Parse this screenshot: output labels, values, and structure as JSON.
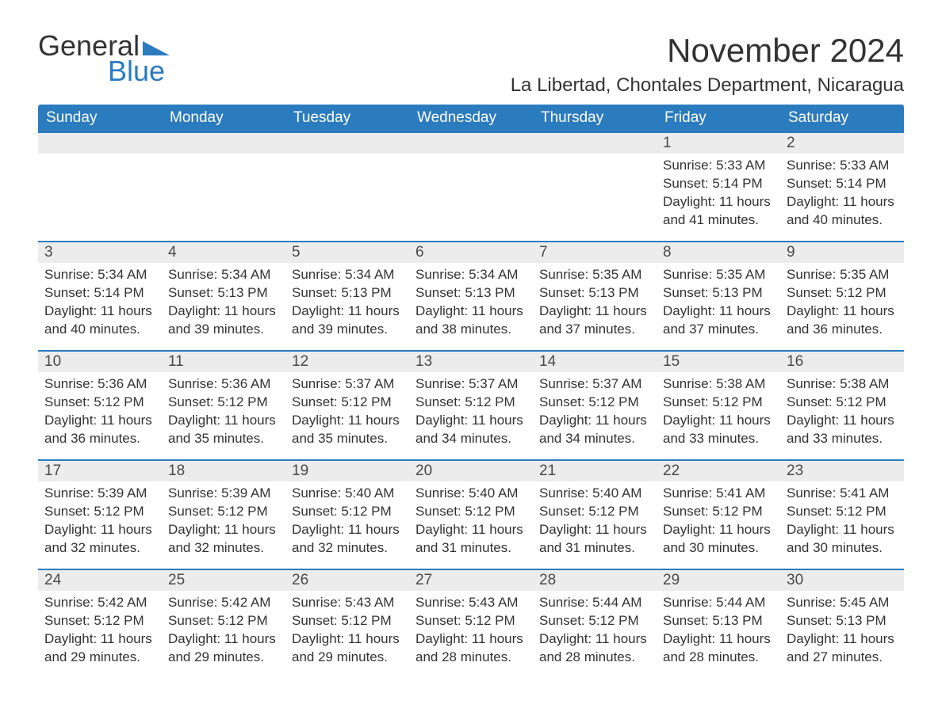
{
  "logo": {
    "word1": "General",
    "word2": "Blue",
    "shape_color": "#2b7bbf",
    "text1_color": "#333333",
    "text2_color": "#2b7bbf",
    "font_size": 36
  },
  "header": {
    "month_title": "November 2024",
    "subtitle": "La Libertad, Chontales Department, Nicaragua",
    "month_fontsize": 42,
    "subtitle_fontsize": 24,
    "text_color": "#333333"
  },
  "calendar": {
    "header_bg": "#2b7bbf",
    "header_text_color": "#ffffff",
    "daynum_bg": "#ececec",
    "daynum_color": "#4a4a4a",
    "row_top_border_color": "#2b7bbf",
    "body_text_color": "#333333",
    "body_fontsize": 17,
    "header_fontsize": 19,
    "days": [
      "Sunday",
      "Monday",
      "Tuesday",
      "Wednesday",
      "Thursday",
      "Friday",
      "Saturday"
    ],
    "weeks": [
      [
        null,
        null,
        null,
        null,
        null,
        {
          "n": "1",
          "sunrise": "5:33 AM",
          "sunset": "5:14 PM",
          "daylight": "11 hours and 41 minutes."
        },
        {
          "n": "2",
          "sunrise": "5:33 AM",
          "sunset": "5:14 PM",
          "daylight": "11 hours and 40 minutes."
        }
      ],
      [
        {
          "n": "3",
          "sunrise": "5:34 AM",
          "sunset": "5:14 PM",
          "daylight": "11 hours and 40 minutes."
        },
        {
          "n": "4",
          "sunrise": "5:34 AM",
          "sunset": "5:13 PM",
          "daylight": "11 hours and 39 minutes."
        },
        {
          "n": "5",
          "sunrise": "5:34 AM",
          "sunset": "5:13 PM",
          "daylight": "11 hours and 39 minutes."
        },
        {
          "n": "6",
          "sunrise": "5:34 AM",
          "sunset": "5:13 PM",
          "daylight": "11 hours and 38 minutes."
        },
        {
          "n": "7",
          "sunrise": "5:35 AM",
          "sunset": "5:13 PM",
          "daylight": "11 hours and 37 minutes."
        },
        {
          "n": "8",
          "sunrise": "5:35 AM",
          "sunset": "5:13 PM",
          "daylight": "11 hours and 37 minutes."
        },
        {
          "n": "9",
          "sunrise": "5:35 AM",
          "sunset": "5:12 PM",
          "daylight": "11 hours and 36 minutes."
        }
      ],
      [
        {
          "n": "10",
          "sunrise": "5:36 AM",
          "sunset": "5:12 PM",
          "daylight": "11 hours and 36 minutes."
        },
        {
          "n": "11",
          "sunrise": "5:36 AM",
          "sunset": "5:12 PM",
          "daylight": "11 hours and 35 minutes."
        },
        {
          "n": "12",
          "sunrise": "5:37 AM",
          "sunset": "5:12 PM",
          "daylight": "11 hours and 35 minutes."
        },
        {
          "n": "13",
          "sunrise": "5:37 AM",
          "sunset": "5:12 PM",
          "daylight": "11 hours and 34 minutes."
        },
        {
          "n": "14",
          "sunrise": "5:37 AM",
          "sunset": "5:12 PM",
          "daylight": "11 hours and 34 minutes."
        },
        {
          "n": "15",
          "sunrise": "5:38 AM",
          "sunset": "5:12 PM",
          "daylight": "11 hours and 33 minutes."
        },
        {
          "n": "16",
          "sunrise": "5:38 AM",
          "sunset": "5:12 PM",
          "daylight": "11 hours and 33 minutes."
        }
      ],
      [
        {
          "n": "17",
          "sunrise": "5:39 AM",
          "sunset": "5:12 PM",
          "daylight": "11 hours and 32 minutes."
        },
        {
          "n": "18",
          "sunrise": "5:39 AM",
          "sunset": "5:12 PM",
          "daylight": "11 hours and 32 minutes."
        },
        {
          "n": "19",
          "sunrise": "5:40 AM",
          "sunset": "5:12 PM",
          "daylight": "11 hours and 32 minutes."
        },
        {
          "n": "20",
          "sunrise": "5:40 AM",
          "sunset": "5:12 PM",
          "daylight": "11 hours and 31 minutes."
        },
        {
          "n": "21",
          "sunrise": "5:40 AM",
          "sunset": "5:12 PM",
          "daylight": "11 hours and 31 minutes."
        },
        {
          "n": "22",
          "sunrise": "5:41 AM",
          "sunset": "5:12 PM",
          "daylight": "11 hours and 30 minutes."
        },
        {
          "n": "23",
          "sunrise": "5:41 AM",
          "sunset": "5:12 PM",
          "daylight": "11 hours and 30 minutes."
        }
      ],
      [
        {
          "n": "24",
          "sunrise": "5:42 AM",
          "sunset": "5:12 PM",
          "daylight": "11 hours and 29 minutes."
        },
        {
          "n": "25",
          "sunrise": "5:42 AM",
          "sunset": "5:12 PM",
          "daylight": "11 hours and 29 minutes."
        },
        {
          "n": "26",
          "sunrise": "5:43 AM",
          "sunset": "5:12 PM",
          "daylight": "11 hours and 29 minutes."
        },
        {
          "n": "27",
          "sunrise": "5:43 AM",
          "sunset": "5:12 PM",
          "daylight": "11 hours and 28 minutes."
        },
        {
          "n": "28",
          "sunrise": "5:44 AM",
          "sunset": "5:12 PM",
          "daylight": "11 hours and 28 minutes."
        },
        {
          "n": "29",
          "sunrise": "5:44 AM",
          "sunset": "5:13 PM",
          "daylight": "11 hours and 28 minutes."
        },
        {
          "n": "30",
          "sunrise": "5:45 AM",
          "sunset": "5:13 PM",
          "daylight": "11 hours and 27 minutes."
        }
      ]
    ],
    "labels": {
      "sunrise": "Sunrise:",
      "sunset": "Sunset:",
      "daylight": "Daylight:"
    }
  }
}
